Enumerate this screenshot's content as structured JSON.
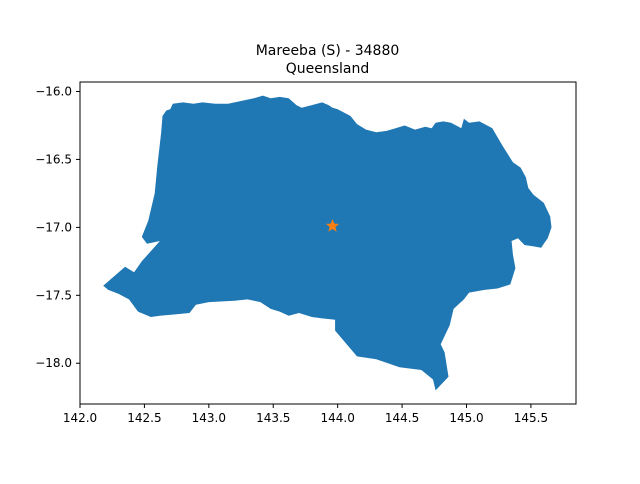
{
  "title_line1": "Mareeba (S) - 34880",
  "title_line2": "Queensland",
  "colors": {
    "region_fill": "#1f77b4",
    "marker": "#ff7f0e",
    "axis": "#000000",
    "background": "#ffffff"
  },
  "marker_icon": "star",
  "chart_data": {
    "type": "map",
    "xlim": [
      142.0,
      145.85
    ],
    "ylim": [
      -18.3,
      -15.93
    ],
    "xticks": [
      142.0,
      142.5,
      143.0,
      143.5,
      144.0,
      144.5,
      145.0,
      145.5
    ],
    "yticks": [
      -16.0,
      -16.5,
      -17.0,
      -17.5,
      -18.0
    ],
    "xtick_labels": [
      "142.0",
      "142.5",
      "143.0",
      "143.5",
      "144.0",
      "144.5",
      "145.0",
      "145.5"
    ],
    "ytick_labels": [
      "−16.0",
      "−16.5",
      "−17.0",
      "−17.5",
      "−18.0"
    ],
    "marker": {
      "lon": 143.96,
      "lat": -16.99
    },
    "grid": false,
    "region_outline": [
      [
        142.18,
        -17.43
      ],
      [
        142.35,
        -17.29
      ],
      [
        142.42,
        -17.33
      ],
      [
        142.48,
        -17.25
      ],
      [
        142.62,
        -17.1
      ],
      [
        142.52,
        -17.12
      ],
      [
        142.48,
        -17.07
      ],
      [
        142.53,
        -16.95
      ],
      [
        142.58,
        -16.75
      ],
      [
        142.6,
        -16.55
      ],
      [
        142.63,
        -16.3
      ],
      [
        142.64,
        -16.18
      ],
      [
        142.67,
        -16.14
      ],
      [
        142.7,
        -16.13
      ],
      [
        142.72,
        -16.09
      ],
      [
        142.8,
        -16.08
      ],
      [
        142.88,
        -16.09
      ],
      [
        142.95,
        -16.08
      ],
      [
        143.05,
        -16.09
      ],
      [
        143.15,
        -16.09
      ],
      [
        143.25,
        -16.07
      ],
      [
        143.35,
        -16.05
      ],
      [
        143.42,
        -16.03
      ],
      [
        143.48,
        -16.05
      ],
      [
        143.55,
        -16.04
      ],
      [
        143.62,
        -16.05
      ],
      [
        143.68,
        -16.1
      ],
      [
        143.72,
        -16.12
      ],
      [
        143.8,
        -16.1
      ],
      [
        143.88,
        -16.08
      ],
      [
        143.93,
        -16.1
      ],
      [
        143.96,
        -16.12
      ],
      [
        144.0,
        -16.13
      ],
      [
        144.1,
        -16.18
      ],
      [
        144.15,
        -16.24
      ],
      [
        144.22,
        -16.28
      ],
      [
        144.3,
        -16.3
      ],
      [
        144.38,
        -16.29
      ],
      [
        144.45,
        -16.27
      ],
      [
        144.52,
        -16.25
      ],
      [
        144.6,
        -16.28
      ],
      [
        144.68,
        -16.26
      ],
      [
        144.73,
        -16.27
      ],
      [
        144.76,
        -16.23
      ],
      [
        144.82,
        -16.22
      ],
      [
        144.88,
        -16.23
      ],
      [
        144.96,
        -16.27
      ],
      [
        144.98,
        -16.2
      ],
      [
        145.02,
        -16.23
      ],
      [
        145.1,
        -16.22
      ],
      [
        145.2,
        -16.27
      ],
      [
        145.28,
        -16.4
      ],
      [
        145.36,
        -16.52
      ],
      [
        145.42,
        -16.56
      ],
      [
        145.46,
        -16.63
      ],
      [
        145.48,
        -16.71
      ],
      [
        145.52,
        -16.76
      ],
      [
        145.6,
        -16.82
      ],
      [
        145.65,
        -16.92
      ],
      [
        145.66,
        -17.0
      ],
      [
        145.63,
        -17.08
      ],
      [
        145.6,
        -17.12
      ],
      [
        145.58,
        -17.15
      ],
      [
        145.52,
        -17.14
      ],
      [
        145.45,
        -17.13
      ],
      [
        145.4,
        -17.08
      ],
      [
        145.35,
        -17.1
      ],
      [
        145.36,
        -17.2
      ],
      [
        145.38,
        -17.3
      ],
      [
        145.34,
        -17.42
      ],
      [
        145.24,
        -17.45
      ],
      [
        145.14,
        -17.46
      ],
      [
        145.02,
        -17.48
      ],
      [
        144.98,
        -17.53
      ],
      [
        144.9,
        -17.6
      ],
      [
        144.87,
        -17.72
      ],
      [
        144.8,
        -17.86
      ],
      [
        144.83,
        -17.92
      ],
      [
        144.86,
        -18.1
      ],
      [
        144.82,
        -18.14
      ],
      [
        144.76,
        -18.2
      ],
      [
        144.74,
        -18.12
      ],
      [
        144.65,
        -18.05
      ],
      [
        144.48,
        -18.03
      ],
      [
        144.3,
        -17.97
      ],
      [
        144.15,
        -17.95
      ],
      [
        143.98,
        -17.76
      ],
      [
        143.98,
        -17.68
      ],
      [
        143.88,
        -17.67
      ],
      [
        143.8,
        -17.66
      ],
      [
        143.7,
        -17.63
      ],
      [
        143.62,
        -17.65
      ],
      [
        143.55,
        -17.62
      ],
      [
        143.48,
        -17.6
      ],
      [
        143.4,
        -17.55
      ],
      [
        143.3,
        -17.53
      ],
      [
        143.2,
        -17.54
      ],
      [
        143.0,
        -17.55
      ],
      [
        142.9,
        -17.57
      ],
      [
        142.85,
        -17.63
      ],
      [
        142.75,
        -17.64
      ],
      [
        142.62,
        -17.65
      ],
      [
        142.55,
        -17.66
      ],
      [
        142.45,
        -17.62
      ],
      [
        142.38,
        -17.53
      ],
      [
        142.3,
        -17.49
      ],
      [
        142.22,
        -17.46
      ],
      [
        142.18,
        -17.43
      ]
    ]
  }
}
